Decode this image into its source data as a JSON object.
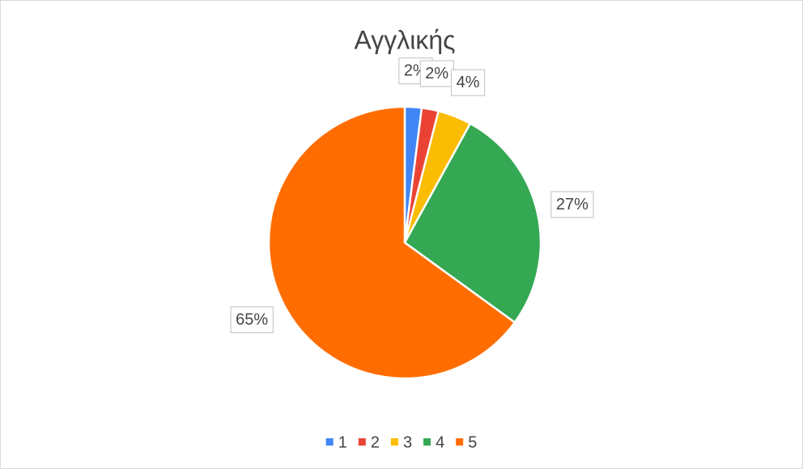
{
  "chart_data": {
    "type": "pie",
    "title": "Αγγλικής",
    "categories": [
      "1",
      "2",
      "3",
      "4",
      "5"
    ],
    "values": [
      2,
      2,
      4,
      27,
      65
    ],
    "value_labels": [
      "2%",
      "2%",
      "4%",
      "27%",
      "65%"
    ],
    "colors": [
      "#4285f4",
      "#ea4335",
      "#fbbc04",
      "#34a853",
      "#ff6d01"
    ],
    "legend": "bottom"
  }
}
